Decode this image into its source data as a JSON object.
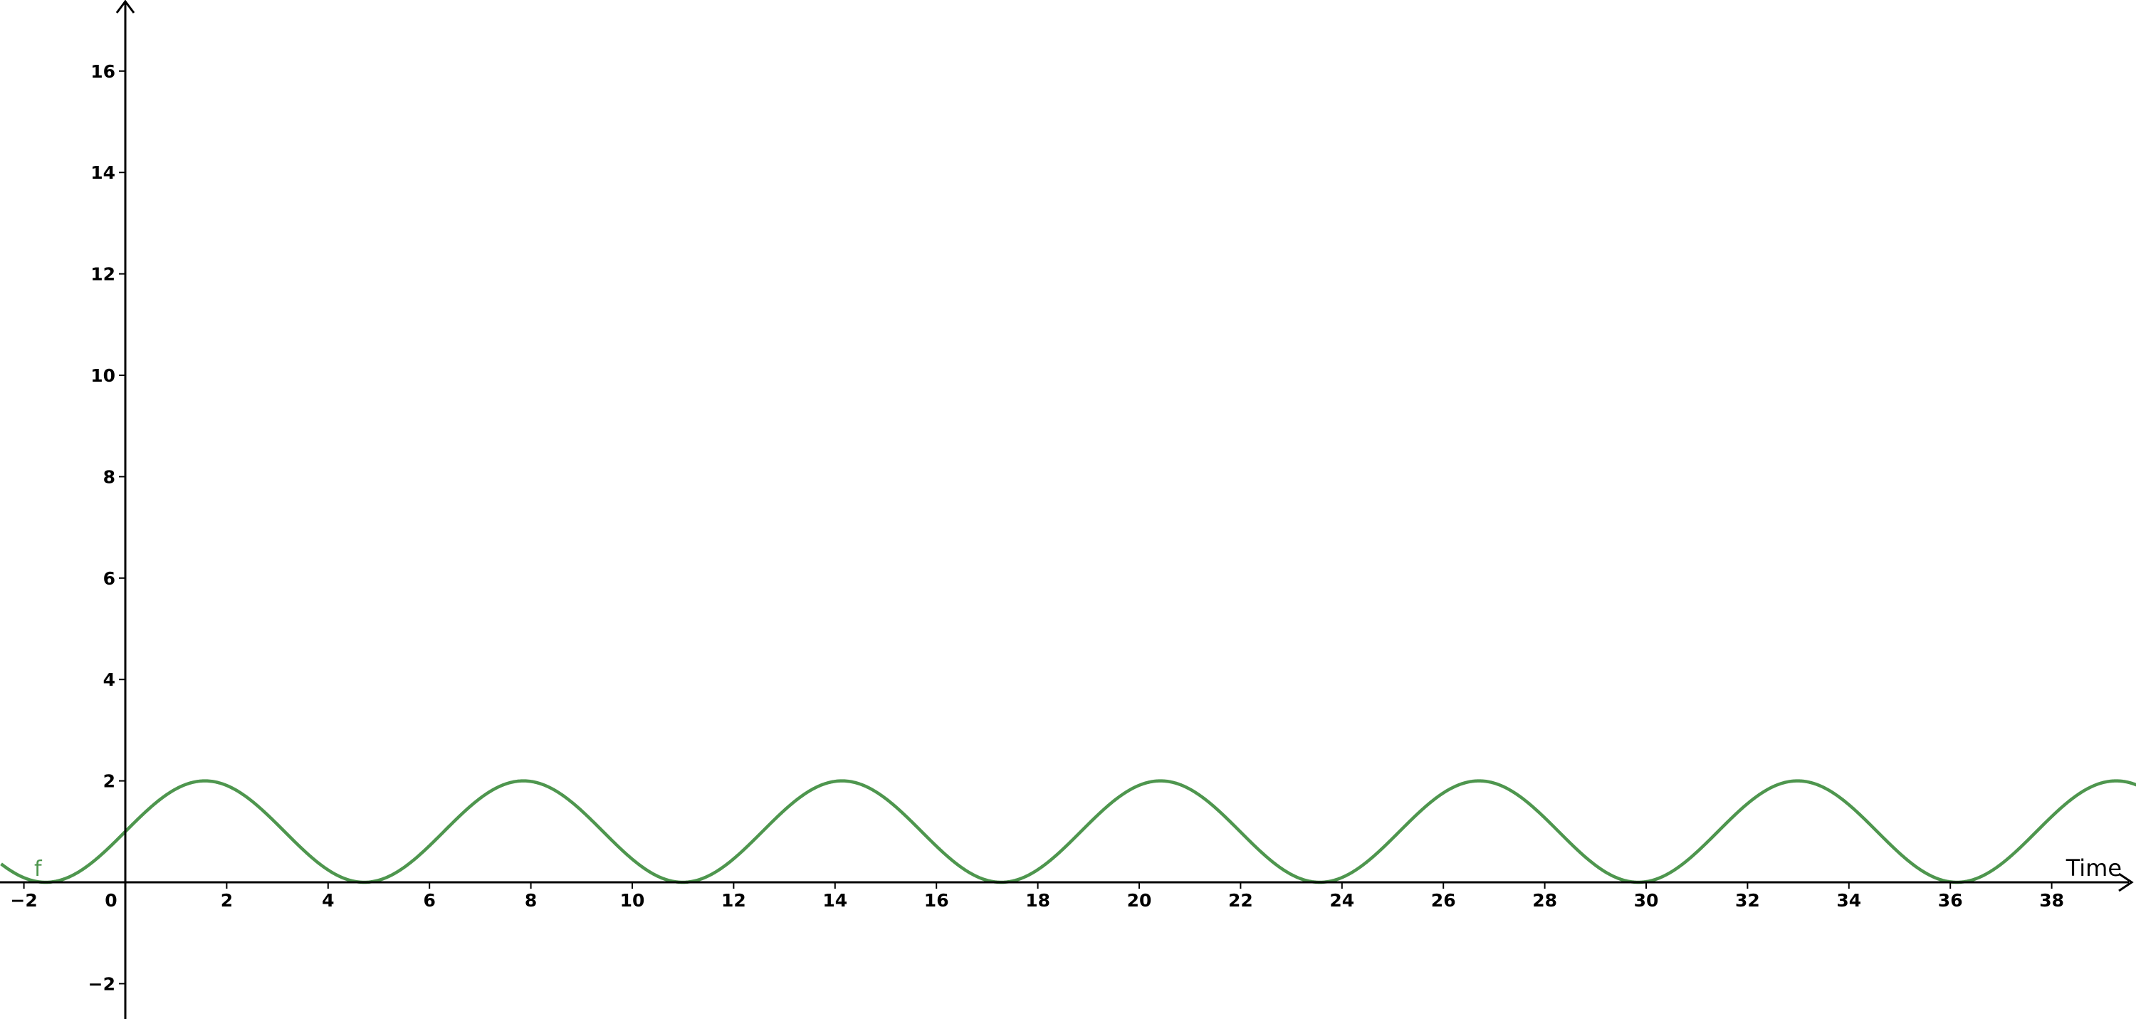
{
  "chart_data": {
    "type": "line",
    "title": "",
    "xlabel": "Time",
    "ylabel": "",
    "xlim": [
      -2.45,
      39.8
    ],
    "ylim": [
      -2.7,
      17.4
    ],
    "grid": false,
    "x_ticks": [
      "−2",
      "0",
      "2",
      "4",
      "6",
      "8",
      "10",
      "12",
      "14",
      "16",
      "18",
      "20",
      "22",
      "24",
      "26",
      "28",
      "30",
      "32",
      "34",
      "36",
      "38"
    ],
    "y_ticks": [
      "−2",
      "2",
      "4",
      "6",
      "8",
      "10",
      "12",
      "14",
      "16"
    ],
    "series": [
      {
        "name": "f",
        "color": "#4e964e",
        "function": "1 + sin(x)",
        "points": [
          {
            "x": -2.45,
            "y": 0.36
          },
          {
            "x": -1.57,
            "y": 0
          },
          {
            "x": 0,
            "y": 1
          },
          {
            "x": 1.57,
            "y": 2
          },
          {
            "x": 4.71,
            "y": 0
          },
          {
            "x": 7.85,
            "y": 2
          },
          {
            "x": 11.0,
            "y": 0
          },
          {
            "x": 14.14,
            "y": 2
          },
          {
            "x": 17.28,
            "y": 0
          },
          {
            "x": 20.42,
            "y": 2
          },
          {
            "x": 23.56,
            "y": 0
          },
          {
            "x": 26.7,
            "y": 2
          },
          {
            "x": 29.85,
            "y": 0
          },
          {
            "x": 32.99,
            "y": 2
          },
          {
            "x": 36.13,
            "y": 0
          },
          {
            "x": 39.27,
            "y": 2
          },
          {
            "x": 39.8,
            "y": 1.88
          }
        ]
      }
    ]
  }
}
